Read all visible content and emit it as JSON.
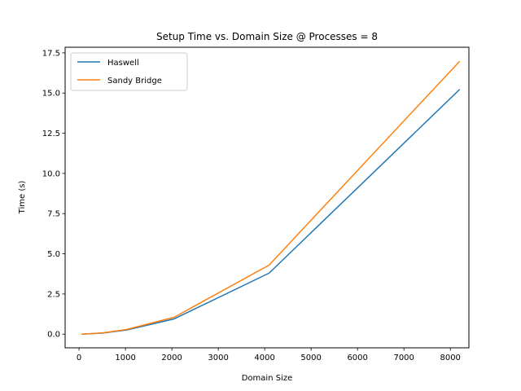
{
  "chart_data": {
    "type": "line",
    "title": "Setup Time vs. Domain Size @ Processes = 8",
    "xlabel": "Domain Size",
    "ylabel": "Time (s)",
    "xlim": [
      -300,
      8400
    ],
    "ylim": [
      -0.85,
      17.85
    ],
    "xticks": [
      0,
      1000,
      2000,
      3000,
      4000,
      5000,
      6000,
      7000,
      8000
    ],
    "yticks": [
      0.0,
      2.5,
      5.0,
      7.5,
      10.0,
      12.5,
      15.0,
      17.5
    ],
    "xtick_labels": [
      "0",
      "1000",
      "2000",
      "3000",
      "4000",
      "5000",
      "6000",
      "7000",
      "8000"
    ],
    "ytick_labels": [
      "0.0",
      "2.5",
      "5.0",
      "7.5",
      "10.0",
      "12.5",
      "15.0",
      "17.5"
    ],
    "grid": false,
    "legend_position": "top-left",
    "series": [
      {
        "name": "Haswell",
        "color": "#1f77b4",
        "x": [
          64,
          512,
          1024,
          2048,
          4096,
          8192
        ],
        "y": [
          0.0,
          0.07,
          0.26,
          0.95,
          3.8,
          15.2
        ]
      },
      {
        "name": "Sandy Bridge",
        "color": "#ff7f0e",
        "x": [
          64,
          512,
          1024,
          2048,
          4096,
          8192
        ],
        "y": [
          0.0,
          0.08,
          0.29,
          1.05,
          4.3,
          16.95
        ]
      }
    ]
  }
}
